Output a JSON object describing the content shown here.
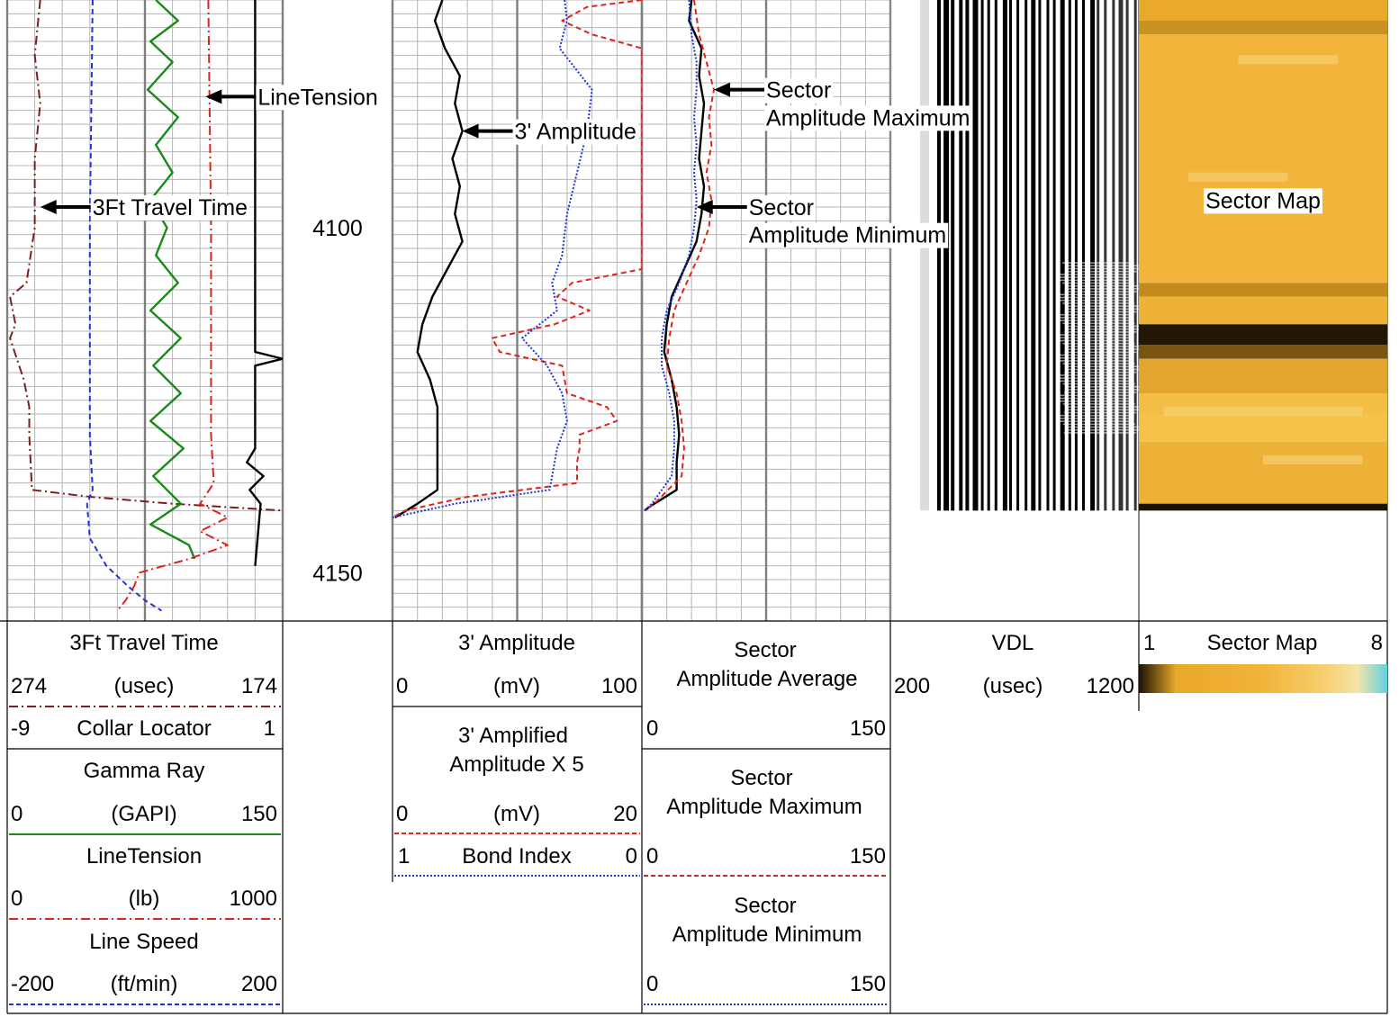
{
  "colors": {
    "travel_time": "#7a1f1f",
    "gamma_ray": "#1a8a1a",
    "line_tension": "#e0241c",
    "line_speed": "#2233dd",
    "amplitude": "#000000",
    "amplified_amplitude": "#e0241c",
    "bond_index": "#2233dd",
    "sector_avg": "#000000",
    "sector_max": "#e0241c",
    "sector_min": "#2233dd",
    "grid_major": "#7f7f7f",
    "grid_minor": "#b5b5b5"
  },
  "chart_data": {
    "type": "line",
    "depth_axis": {
      "range": [
        4067,
        4157
      ],
      "labels": [
        {
          "text": "4100",
          "value": 4100
        },
        {
          "text": "4150",
          "value": 4150
        }
      ]
    },
    "annotations": [
      {
        "text": "LineTension",
        "track": 1,
        "depth": 4081,
        "value": 0.72
      },
      {
        "text": "3Ft Travel Time",
        "track": 1,
        "depth": 4097,
        "value": 0.12
      },
      {
        "text": "3' Amplitude",
        "track": 2,
        "depth": 4086,
        "value": 0.28
      },
      {
        "text": "Sector",
        "track": 3,
        "depth": 4080,
        "value": 0.29
      },
      {
        "text": "Amplitude Maximum",
        "track": 3,
        "depth": 4084,
        "value": 0.29
      },
      {
        "text": "Sector",
        "track": 3,
        "depth": 4097,
        "value": 0.22
      },
      {
        "text": "Amplitude Minimum",
        "track": 3,
        "depth": 4101,
        "value": 0.22
      },
      {
        "text": "Sector Map",
        "track": 5,
        "depth": 4096,
        "value": 0.5
      }
    ],
    "header_labels": {
      "travel_time": {
        "title": "3Ft Travel Time",
        "unit": "(usec)",
        "left": "274",
        "right": "174"
      },
      "collar_locator": {
        "title": "Collar Locator",
        "left": "-9",
        "right": "1"
      },
      "gamma_ray": {
        "title": "Gamma Ray",
        "unit": "(GAPI)",
        "left": "0",
        "right": "150"
      },
      "line_tension": {
        "title": "LineTension",
        "unit": "(lb)",
        "left": "0",
        "right": "1000"
      },
      "line_speed": {
        "title": "Line Speed",
        "unit": "(ft/min)",
        "left": "-200",
        "right": "200"
      },
      "amplitude": {
        "title": "3' Amplitude",
        "unit": "(mV)",
        "left": "0",
        "right": "100"
      },
      "amplified": {
        "title1": "3' Amplified",
        "title2": "Amplitude X 5",
        "unit": "(mV)",
        "left": "0",
        "right": "20"
      },
      "bond_index": {
        "title": "Bond Index",
        "left": "1",
        "right": "0"
      },
      "sector_avg": {
        "title1": "Sector",
        "title2": "Amplitude Average",
        "left": "0",
        "right": "150"
      },
      "sector_max": {
        "title1": "Sector",
        "title2": "Amplitude Maximum",
        "left": "0",
        "right": "150"
      },
      "sector_min": {
        "title1": "Sector",
        "title2": "Amplitude Minimum",
        "left": "0",
        "right": "150"
      },
      "vdl": {
        "title": "VDL",
        "unit": "(usec)",
        "left": "200",
        "right": "1200"
      },
      "sector_map": {
        "title": "Sector Map",
        "left": "1",
        "right": "8"
      }
    },
    "series": [
      {
        "name": "3Ft Travel Time",
        "track": 1,
        "style": "dashdot",
        "color_key": "travel_time",
        "depth": [
          4067,
          4075,
          4082,
          4090,
          4100,
          4108,
          4110,
          4114,
          4116,
          4122,
          4126,
          4130,
          4138,
          4139,
          4140,
          4141
        ],
        "value": [
          0.12,
          0.1,
          0.12,
          0.1,
          0.1,
          0.07,
          0.01,
          0.03,
          0.01,
          0.06,
          0.08,
          0.08,
          0.09,
          0.3,
          0.6,
          1.0
        ]
      },
      {
        "name": "Line Speed",
        "track": 1,
        "style": "dashed",
        "color_key": "line_speed",
        "depth": [
          4067,
          4100,
          4130,
          4138,
          4140,
          4145,
          4149,
          4152,
          4154,
          4155.5
        ],
        "value": [
          0.31,
          0.3,
          0.3,
          0.31,
          0.29,
          0.3,
          0.36,
          0.44,
          0.5,
          0.56
        ]
      },
      {
        "name": "Gamma Ray",
        "track": 1,
        "style": "solid",
        "color_key": "gamma_ray",
        "depth": [
          4067,
          4070,
          4073,
          4076,
          4080,
          4084,
          4088,
          4092,
          4096,
          4100,
          4104,
          4108,
          4112,
          4116,
          4120,
          4124,
          4128,
          4132,
          4136,
          4140,
          4143,
          4146,
          4148
        ],
        "value": [
          0.54,
          0.62,
          0.52,
          0.6,
          0.51,
          0.62,
          0.54,
          0.6,
          0.52,
          0.58,
          0.54,
          0.62,
          0.52,
          0.63,
          0.53,
          0.63,
          0.52,
          0.64,
          0.53,
          0.63,
          0.52,
          0.66,
          0.68
        ]
      },
      {
        "name": "LineTension",
        "track": 1,
        "style": "dashdot",
        "color_key": "line_tension",
        "depth": [
          4067,
          4100,
          4130,
          4137,
          4140,
          4142,
          4144,
          4146,
          4148,
          4150,
          4152,
          4154,
          4155.5
        ],
        "value": [
          0.73,
          0.74,
          0.74,
          0.75,
          0.7,
          0.8,
          0.7,
          0.8,
          0.66,
          0.48,
          0.46,
          0.43,
          0.4
        ]
      },
      {
        "name": "Collar Locator",
        "track": 1,
        "style": "solid",
        "color_key": "amplitude",
        "depth": [
          4067,
          4100,
          4118,
          4119,
          4120,
          4132,
          4134,
          4136,
          4138,
          4140,
          4149
        ],
        "value": [
          0.9,
          0.9,
          0.9,
          1.0,
          0.9,
          0.9,
          0.87,
          0.93,
          0.88,
          0.92,
          0.9
        ]
      },
      {
        "name": "3' Amplitude",
        "track": 2,
        "style": "solid",
        "color_key": "amplitude",
        "depth": [
          4067,
          4070,
          4074,
          4078,
          4082,
          4086,
          4090,
          4094,
          4098,
          4102,
          4106,
          4110,
          4114,
          4118,
          4122,
          4126,
          4130,
          4135,
          4138,
          4140,
          4142
        ],
        "value": [
          0.2,
          0.17,
          0.21,
          0.27,
          0.25,
          0.28,
          0.24,
          0.27,
          0.25,
          0.28,
          0.22,
          0.16,
          0.12,
          0.1,
          0.15,
          0.18,
          0.18,
          0.18,
          0.18,
          0.1,
          0.01
        ]
      },
      {
        "name": "3' Amplified Amplitude X 5",
        "track": 2,
        "style": "dashed",
        "color_key": "amplified_amplitude",
        "depth": [
          4067,
          4068,
          4070,
          4072,
          4074,
          4106,
          4108,
          4110,
          4112,
          4114,
          4116,
          4118,
          4120,
          4124,
          4126,
          4128,
          4130,
          4132,
          4134,
          4137,
          4139,
          4141,
          4142
        ],
        "value": [
          1.0,
          0.78,
          0.68,
          0.8,
          1.0,
          1.0,
          0.72,
          0.66,
          0.79,
          0.65,
          0.4,
          0.43,
          0.68,
          0.7,
          0.86,
          0.9,
          0.75,
          0.75,
          0.74,
          0.74,
          0.3,
          0.05,
          0.0
        ]
      },
      {
        "name": "Bond Index",
        "track": 2,
        "style": "dotted",
        "color_key": "bond_index",
        "depth": [
          4067,
          4070,
          4074,
          4080,
          4086,
          4092,
          4098,
          4104,
          4108,
          4112,
          4116,
          4120,
          4124,
          4128,
          4132,
          4136,
          4138,
          4140,
          4142
        ],
        "value": [
          0.69,
          0.7,
          0.67,
          0.8,
          0.78,
          0.74,
          0.7,
          0.68,
          0.64,
          0.66,
          0.52,
          0.62,
          0.68,
          0.7,
          0.66,
          0.64,
          0.63,
          0.25,
          0.0
        ]
      },
      {
        "name": "Sector Amplitude Average",
        "track": 3,
        "style": "solid",
        "color_key": "sector_avg",
        "depth": [
          4067,
          4070,
          4074,
          4078,
          4082,
          4086,
          4090,
          4094,
          4098,
          4102,
          4106,
          4110,
          4114,
          4118,
          4122,
          4126,
          4130,
          4134,
          4138,
          4140,
          4141
        ],
        "value": [
          0.2,
          0.19,
          0.24,
          0.23,
          0.25,
          0.24,
          0.23,
          0.25,
          0.24,
          0.22,
          0.17,
          0.12,
          0.1,
          0.09,
          0.12,
          0.14,
          0.15,
          0.14,
          0.14,
          0.05,
          0.01
        ]
      },
      {
        "name": "Sector Amplitude Maximum",
        "track": 3,
        "style": "dashed",
        "color_key": "sector_max",
        "depth": [
          4067,
          4072,
          4076,
          4080,
          4084,
          4088,
          4092,
          4096,
          4100,
          4104,
          4108,
          4112,
          4116,
          4120,
          4124,
          4128,
          4132,
          4136,
          4140,
          4141
        ],
        "value": [
          0.21,
          0.23,
          0.26,
          0.29,
          0.27,
          0.28,
          0.26,
          0.28,
          0.27,
          0.23,
          0.18,
          0.13,
          0.11,
          0.1,
          0.14,
          0.16,
          0.17,
          0.16,
          0.05,
          0.01
        ]
      },
      {
        "name": "Sector Amplitude Minimum",
        "track": 3,
        "style": "dotted",
        "color_key": "sector_min",
        "depth": [
          4067,
          4072,
          4076,
          4080,
          4084,
          4088,
          4092,
          4096,
          4100,
          4104,
          4108,
          4112,
          4116,
          4120,
          4124,
          4128,
          4132,
          4136,
          4140,
          4141
        ],
        "value": [
          0.19,
          0.2,
          0.22,
          0.22,
          0.21,
          0.22,
          0.21,
          0.22,
          0.21,
          0.19,
          0.15,
          0.1,
          0.08,
          0.08,
          0.11,
          0.13,
          0.13,
          0.12,
          0.04,
          0.01
        ]
      }
    ],
    "sector_map_bands": [
      {
        "depth": [
          4067,
          4070
        ],
        "color": "#e9a92a"
      },
      {
        "depth": [
          4070,
          4072
        ],
        "color": "#c9911f"
      },
      {
        "depth": [
          4072,
          4108
        ],
        "color": "#f2b43a"
      },
      {
        "depth": [
          4108,
          4110
        ],
        "color": "#c48a1d"
      },
      {
        "depth": [
          4110,
          4114
        ],
        "color": "#efb238"
      },
      {
        "depth": [
          4114,
          4117
        ],
        "color": "#221605"
      },
      {
        "depth": [
          4117,
          4119
        ],
        "color": "#7a5510"
      },
      {
        "depth": [
          4119,
          4124
        ],
        "color": "#e2a630"
      },
      {
        "depth": [
          4124,
          4127
        ],
        "color": "#f4bd45"
      },
      {
        "depth": [
          4127,
          4131
        ],
        "color": "#f6c249"
      },
      {
        "depth": [
          4131,
          4140
        ],
        "color": "#eeb137"
      },
      {
        "depth": [
          4140,
          4141
        ],
        "color": "#1a1203"
      }
    ],
    "sector_map_scale": [
      "#1a1203",
      "#e8a829",
      "#f2b43a",
      "#f7cf70",
      "#f6e3a8",
      "#5fd3df"
    ]
  }
}
